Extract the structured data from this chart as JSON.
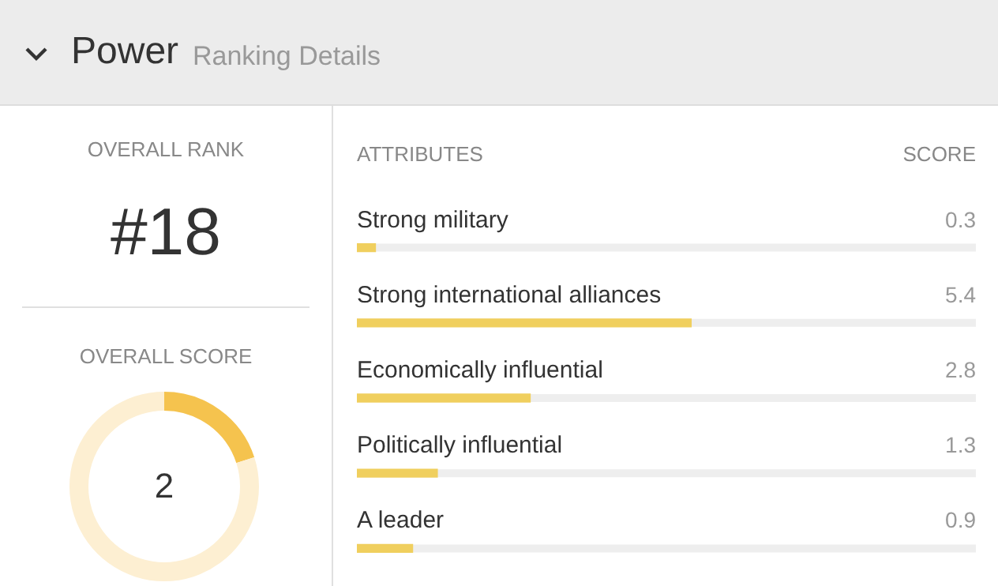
{
  "chart_data": [
    {
      "type": "other",
      "title": "Power",
      "subtitle": "Ranking Details",
      "annotations": [
        "OVERALL RANK",
        "#18"
      ]
    },
    {
      "type": "donut",
      "title": "OVERALL SCORE",
      "categories": [
        null,
        null
      ],
      "values": [
        20,
        80
      ],
      "colors": [
        "#f5c34e",
        "#fdefd2"
      ],
      "annotations": [
        "2"
      ]
    },
    {
      "type": "bar",
      "orientation": "horizontal",
      "ylabel": "ATTRIBUTES",
      "xlabel": "SCORE",
      "categories": [
        "Strong military",
        "Strong international alliances",
        "Economically influential",
        "Politically influential",
        "A leader"
      ],
      "values": [
        0.3,
        5.4,
        2.8,
        1.3,
        0.9
      ],
      "color": "#f0cf5e",
      "xlim": [
        0,
        10
      ],
      "data_labels": true,
      "tick_labels": "y"
    }
  ]
}
